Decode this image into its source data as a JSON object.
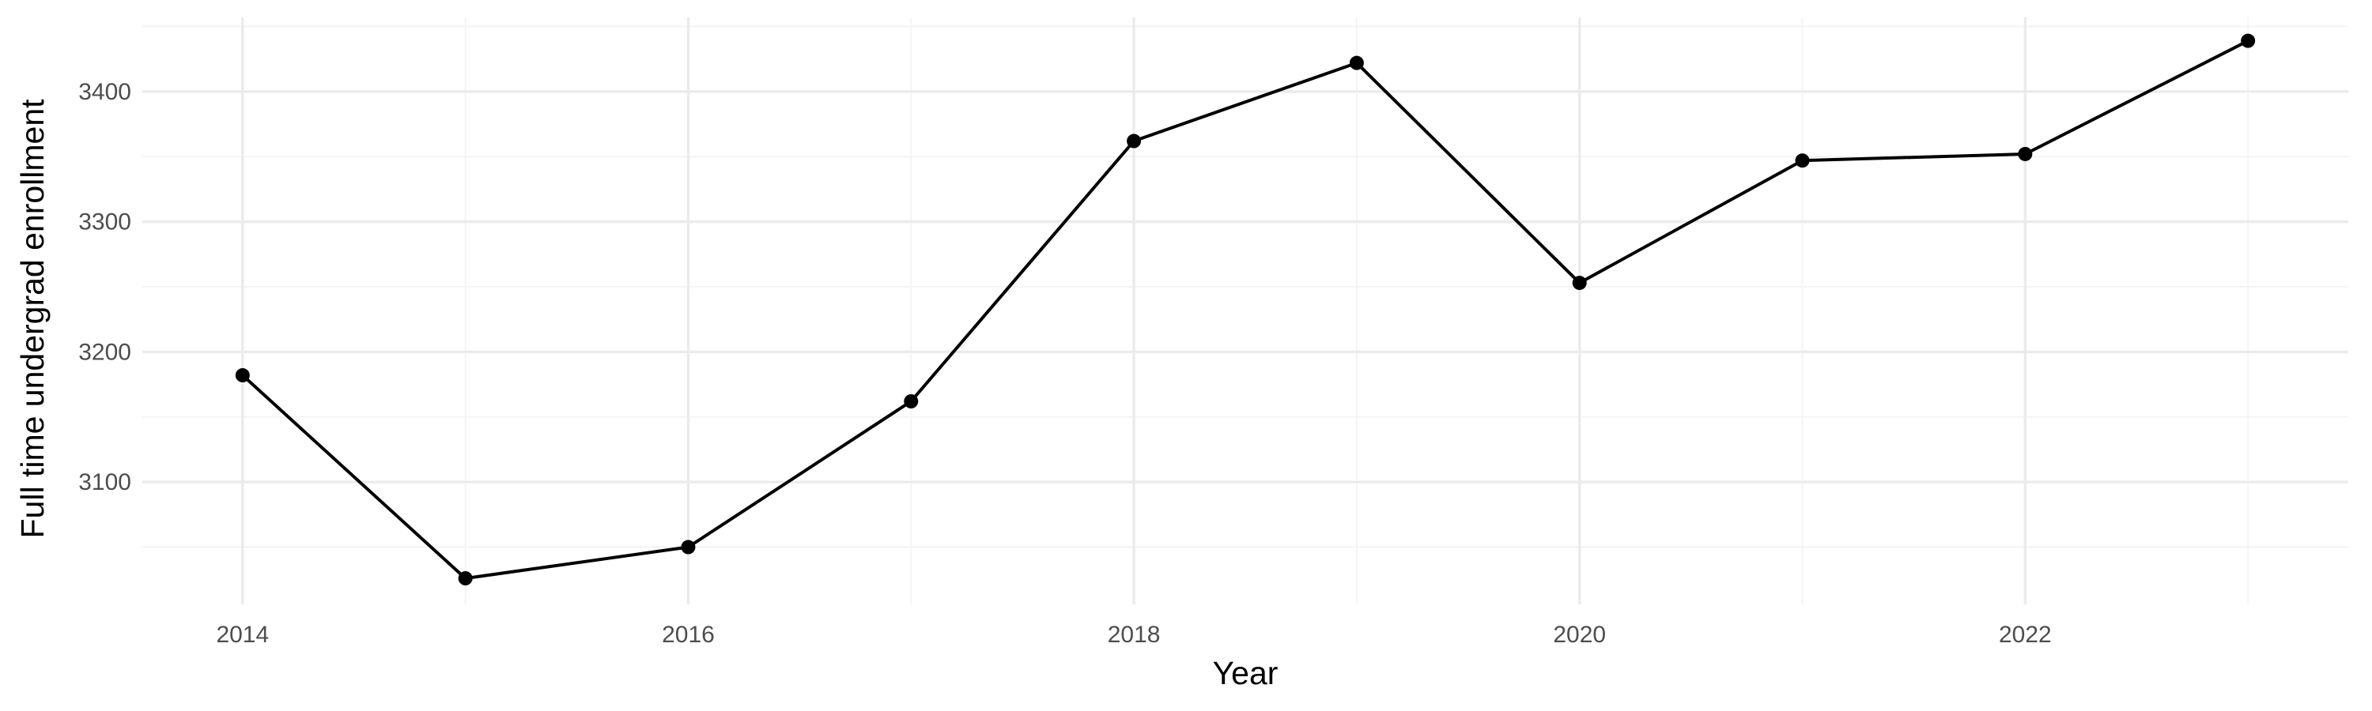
{
  "chart_data": {
    "type": "line",
    "title": "",
    "xlabel": "Year",
    "ylabel": "Full time undergrad enrollment",
    "x": [
      2014,
      2015,
      2016,
      2017,
      2018,
      2019,
      2020,
      2021,
      2022,
      2023
    ],
    "series": [
      {
        "values": [
          3182,
          3026,
          3050,
          3162,
          3362,
          3422,
          3253,
          3347,
          3352,
          3439
        ]
      }
    ],
    "xlim": [
      2013.55,
      2023.45
    ],
    "ylim": [
      3006,
      3457
    ],
    "x_ticks": [
      2014,
      2016,
      2018,
      2020,
      2022
    ],
    "x_tick_labels": [
      "2014",
      "2016",
      "2018",
      "2020",
      "2022"
    ],
    "y_ticks": [
      3100,
      3200,
      3300,
      3400
    ],
    "y_tick_labels": [
      "3100",
      "3200",
      "3300",
      "3400"
    ],
    "grid": true,
    "legend": "none",
    "colors": {
      "line": "#000000",
      "point": "#000000",
      "grid": "#ebebeb"
    }
  }
}
